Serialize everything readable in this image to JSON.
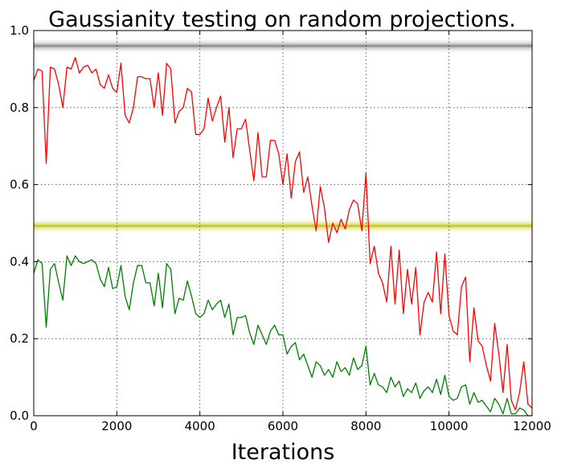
{
  "chart_data": {
    "type": "line",
    "title": "Gaussianity testing on random projections.",
    "xlabel": "Iterations",
    "ylabel": "",
    "xlim": [
      0,
      12000
    ],
    "ylim": [
      0,
      1
    ],
    "xticks": [
      "0",
      "2000",
      "4000",
      "6000",
      "8000",
      "10000",
      "12000"
    ],
    "yticks": [
      "0.0",
      "0.2",
      "0.4",
      "0.6",
      "0.8",
      "1.0"
    ],
    "grid": true,
    "bands": [
      {
        "y": 0.96,
        "color": "#7f7f7f"
      },
      {
        "y": 0.493,
        "color": "#bfbf00"
      }
    ],
    "series": [
      {
        "color": "#ff0000",
        "x": [
          0,
          100,
          200,
          300,
          400,
          500,
          600,
          700,
          800,
          900,
          1000,
          1100,
          1200,
          1300,
          1400,
          1500,
          1600,
          1700,
          1800,
          1900,
          2000,
          2100,
          2200,
          2300,
          2400,
          2500,
          2600,
          2700,
          2800,
          2900,
          3000,
          3100,
          3200,
          3300,
          3400,
          3500,
          3600,
          3700,
          3800,
          3900,
          4000,
          4100,
          4200,
          4300,
          4400,
          4500,
          4600,
          4700,
          4800,
          4900,
          5000,
          5100,
          5200,
          5300,
          5400,
          5500,
          5600,
          5700,
          5800,
          5900,
          6000,
          6100,
          6200,
          6300,
          6400,
          6500,
          6600,
          6700,
          6800,
          6900,
          7000,
          7100,
          7200,
          7300,
          7400,
          7500,
          7600,
          7700,
          7800,
          7900,
          8000,
          8100,
          8200,
          8300,
          8400,
          8500,
          8600,
          8700,
          8800,
          8900,
          9000,
          9100,
          9200,
          9300,
          9400,
          9500,
          9600,
          9700,
          9800,
          9900,
          10000,
          10100,
          10200,
          10300,
          10400,
          10500,
          10600,
          10700,
          10800,
          10900,
          11000,
          11100,
          11200,
          11300,
          11400,
          11500,
          11600,
          11700,
          11800,
          11900,
          12000
        ],
        "y": [
          0.87,
          0.9,
          0.895,
          0.655,
          0.905,
          0.9,
          0.86,
          0.8,
          0.905,
          0.9,
          0.93,
          0.89,
          0.905,
          0.91,
          0.89,
          0.9,
          0.86,
          0.85,
          0.885,
          0.85,
          0.84,
          0.915,
          0.78,
          0.76,
          0.8,
          0.88,
          0.88,
          0.875,
          0.875,
          0.8,
          0.89,
          0.78,
          0.915,
          0.9,
          0.76,
          0.79,
          0.8,
          0.85,
          0.84,
          0.73,
          0.73,
          0.745,
          0.825,
          0.765,
          0.8,
          0.83,
          0.71,
          0.8,
          0.67,
          0.745,
          0.745,
          0.77,
          0.69,
          0.61,
          0.735,
          0.62,
          0.62,
          0.715,
          0.715,
          0.68,
          0.6,
          0.68,
          0.565,
          0.66,
          0.685,
          0.58,
          0.62,
          0.545,
          0.48,
          0.595,
          0.54,
          0.45,
          0.5,
          0.475,
          0.51,
          0.485,
          0.535,
          0.56,
          0.55,
          0.48,
          0.63,
          0.395,
          0.44,
          0.37,
          0.345,
          0.295,
          0.44,
          0.29,
          0.43,
          0.265,
          0.38,
          0.29,
          0.385,
          0.21,
          0.295,
          0.32,
          0.295,
          0.425,
          0.265,
          0.42,
          0.26,
          0.22,
          0.21,
          0.335,
          0.36,
          0.14,
          0.28,
          0.195,
          0.18,
          0.13,
          0.09,
          0.24,
          0.16,
          0.06,
          0.185,
          0.04,
          0.015,
          0.06,
          0.14,
          0.03,
          0.02
        ]
      },
      {
        "color": "#008000",
        "x": [
          0,
          100,
          200,
          300,
          400,
          500,
          600,
          700,
          800,
          900,
          1000,
          1100,
          1200,
          1300,
          1400,
          1500,
          1600,
          1700,
          1800,
          1900,
          2000,
          2100,
          2200,
          2300,
          2400,
          2500,
          2600,
          2700,
          2800,
          2900,
          3000,
          3100,
          3200,
          3300,
          3400,
          3500,
          3600,
          3700,
          3800,
          3900,
          4000,
          4100,
          4200,
          4300,
          4400,
          4500,
          4600,
          4700,
          4800,
          4900,
          5000,
          5100,
          5200,
          5300,
          5400,
          5500,
          5600,
          5700,
          5800,
          5900,
          6000,
          6100,
          6200,
          6300,
          6400,
          6500,
          6600,
          6700,
          6800,
          6900,
          7000,
          7100,
          7200,
          7300,
          7400,
          7500,
          7600,
          7700,
          7800,
          7900,
          8000,
          8100,
          8200,
          8300,
          8400,
          8500,
          8600,
          8700,
          8800,
          8900,
          9000,
          9100,
          9200,
          9300,
          9400,
          9500,
          9600,
          9700,
          9800,
          9900,
          10000,
          10100,
          10200,
          10300,
          10400,
          10500,
          10600,
          10700,
          10800,
          10900,
          11000,
          11100,
          11200,
          11300,
          11400,
          11500,
          11600,
          11700,
          11800,
          11900,
          12000
        ],
        "y": [
          0.37,
          0.405,
          0.395,
          0.23,
          0.38,
          0.395,
          0.345,
          0.3,
          0.415,
          0.39,
          0.415,
          0.4,
          0.395,
          0.4,
          0.405,
          0.395,
          0.355,
          0.335,
          0.385,
          0.33,
          0.335,
          0.39,
          0.31,
          0.275,
          0.345,
          0.39,
          0.39,
          0.345,
          0.345,
          0.285,
          0.37,
          0.28,
          0.395,
          0.38,
          0.265,
          0.305,
          0.3,
          0.35,
          0.31,
          0.265,
          0.255,
          0.265,
          0.3,
          0.275,
          0.29,
          0.3,
          0.255,
          0.29,
          0.21,
          0.255,
          0.255,
          0.26,
          0.215,
          0.185,
          0.235,
          0.21,
          0.185,
          0.22,
          0.235,
          0.21,
          0.21,
          0.16,
          0.18,
          0.19,
          0.145,
          0.16,
          0.13,
          0.1,
          0.14,
          0.13,
          0.105,
          0.12,
          0.1,
          0.14,
          0.115,
          0.125,
          0.105,
          0.15,
          0.12,
          0.13,
          0.18,
          0.08,
          0.11,
          0.08,
          0.075,
          0.06,
          0.1,
          0.075,
          0.09,
          0.05,
          0.07,
          0.06,
          0.085,
          0.045,
          0.065,
          0.075,
          0.06,
          0.095,
          0.055,
          0.105,
          0.05,
          0.04,
          0.045,
          0.075,
          0.08,
          0.03,
          0.06,
          0.035,
          0.04,
          0.025,
          0.01,
          0.045,
          0.03,
          0.005,
          0.045,
          0.005,
          0.005,
          0.02,
          0.015,
          0.0,
          0.0
        ]
      }
    ]
  }
}
